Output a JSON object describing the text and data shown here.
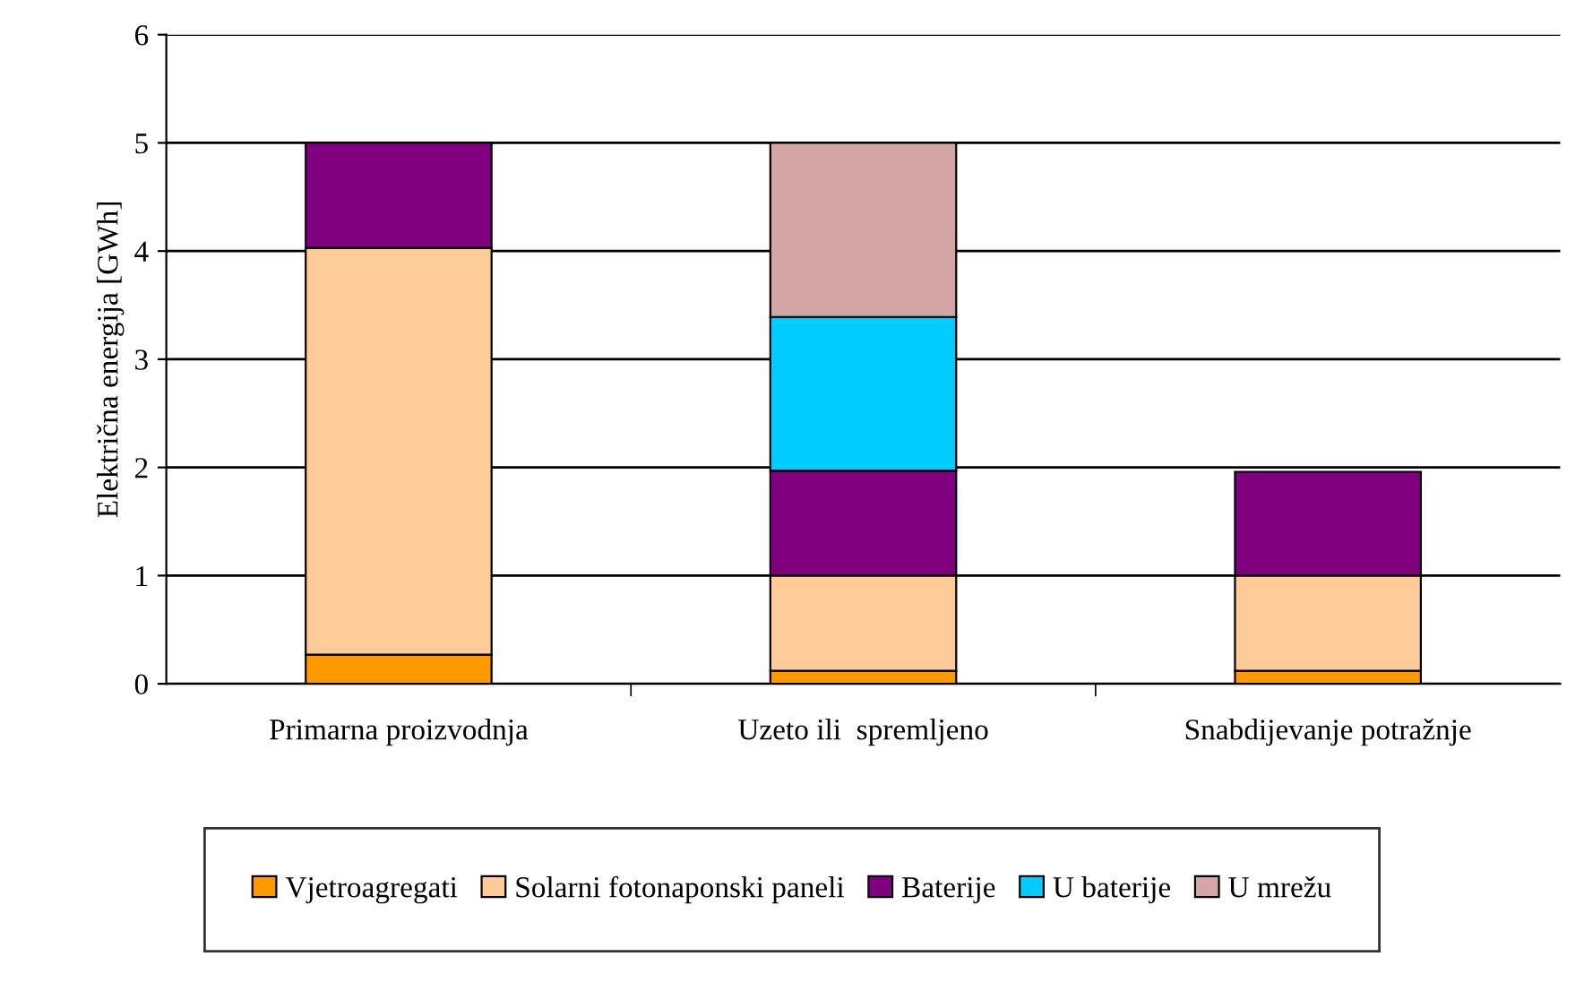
{
  "chart_data": {
    "type": "bar",
    "stacked": true,
    "ylabel": "Električna energija [GWh]",
    "categories": [
      "Primarna proizvodnja",
      "Uzeto ili  spremljeno",
      "Snabdijevanje potražnje"
    ],
    "series": [
      {
        "name": "Vjetroagregati",
        "color": "#ff9900",
        "values": [
          0.27,
          0.12,
          0.12
        ]
      },
      {
        "name": "Solarni fotonaponski paneli",
        "color": "#ffcc99",
        "values": [
          3.76,
          0.88,
          0.88
        ]
      },
      {
        "name": "Baterije",
        "color": "#800080",
        "values": [
          0.97,
          0.97,
          0.96
        ]
      },
      {
        "name": "U baterije",
        "color": "#00ccff",
        "values": [
          null,
          1.42,
          null
        ]
      },
      {
        "name": "U mrežu",
        "color": "#d4a5a5",
        "values": [
          null,
          1.61,
          null
        ]
      }
    ],
    "ylim": [
      0,
      6
    ],
    "yticks": [
      0,
      1,
      2,
      3,
      4,
      5,
      6
    ],
    "grid": "y",
    "legend": "bottom"
  }
}
